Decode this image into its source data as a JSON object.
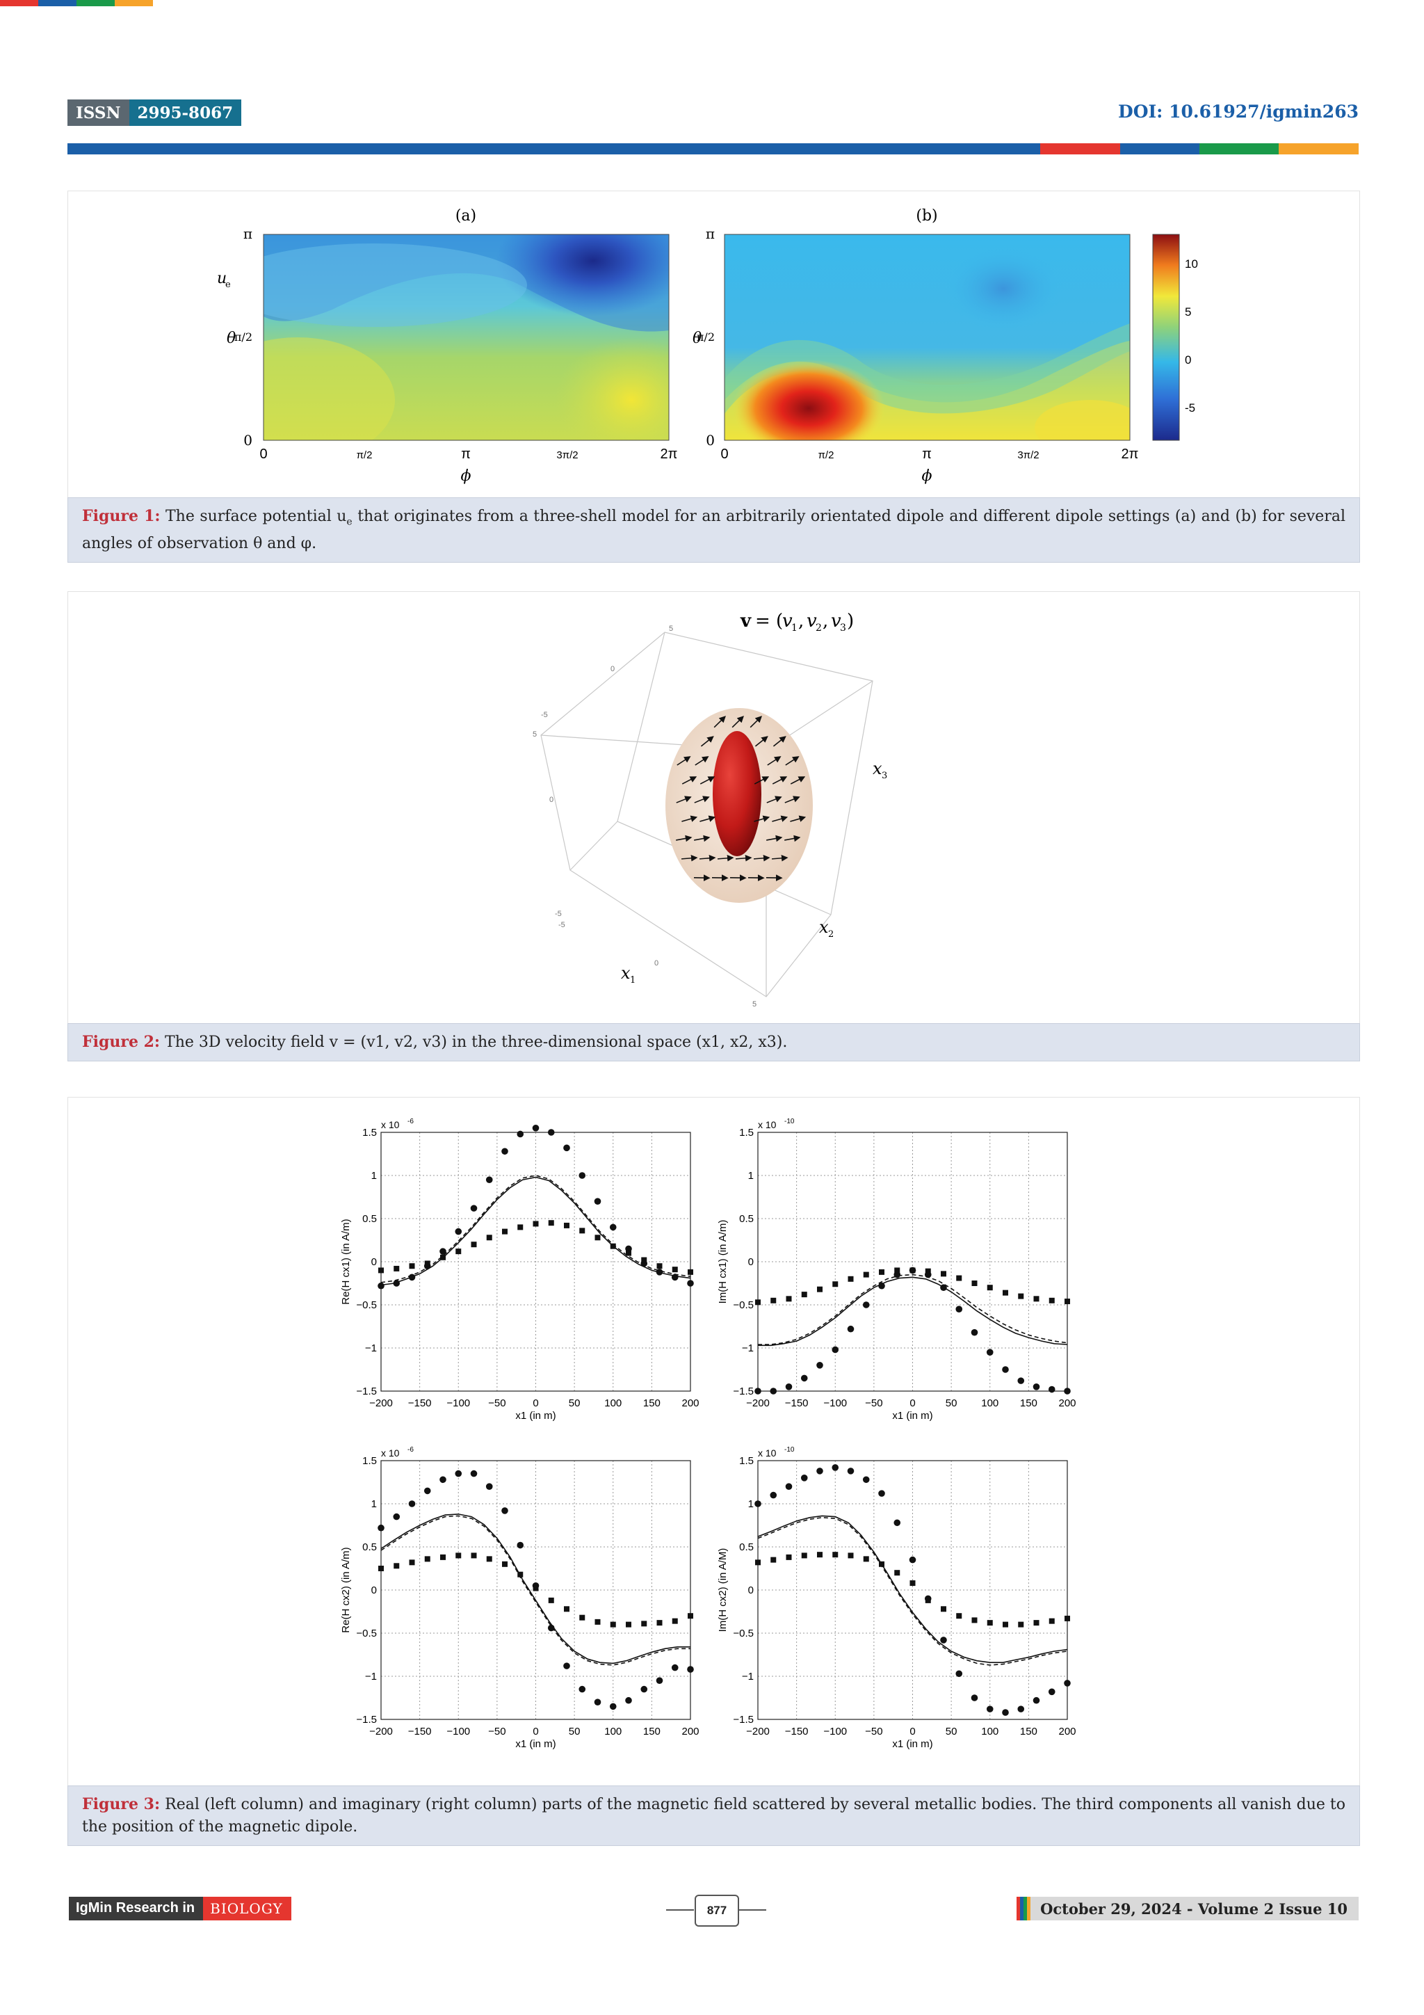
{
  "header": {
    "issn_label": "ISSN",
    "issn_value": "2995-8067",
    "doi": "DOI: 10.61927/igmin263"
  },
  "colors": {
    "top_stripes": [
      "#e5362f",
      "#1b5fa8",
      "#1a9a4a",
      "#f6a32b"
    ],
    "rule_main": "#1b5fa8",
    "rule_accents": [
      "#e5362f",
      "#1b5fa8",
      "#1a9a4a",
      "#f6a32b"
    ],
    "caption_bg": "#dde3ee",
    "caption_label": "#c0303a"
  },
  "figure1": {
    "panel_a_title": "(a)",
    "panel_b_title": "(b)",
    "ylabel": "θ",
    "xlabel": "ϕ",
    "u_label": "u",
    "u_subscript": "e",
    "yticks": [
      "π",
      "π/2",
      "0"
    ],
    "xticks": [
      "0",
      "π/2",
      "π",
      "3π/2",
      "2π"
    ],
    "colorbar_ticks": [
      "10",
      "5",
      "0",
      "-5"
    ],
    "colormap": "jet",
    "caption_label": "Figure 1:",
    "caption_text": "The surface potential u",
    "caption_sub": "e",
    "caption_rest": " that originates from a three-shell model for an arbitrarily orientated dipole and different dipole settings (a) and (b) for several angles of observation θ and φ."
  },
  "figure2": {
    "title": "v = (v",
    "title_parts": [
      "v",
      "1",
      "v",
      "2",
      "v",
      "3"
    ],
    "axis_x1": "x",
    "axis_x1_sub": "1",
    "axis_x2": "x",
    "axis_x2_sub": "2",
    "axis_x3": "x",
    "axis_x3_sub": "3",
    "ticks": [
      "5",
      "0",
      "-5",
      "5",
      "0",
      "-5",
      "-5",
      "0",
      "5"
    ],
    "caption_label": "Figure 2:",
    "caption_text": "The 3D velocity field v = (v1, v2, v3) in the three-dimensional space (x1, x2, x3)."
  },
  "figure3": {
    "caption_label": "Figure 3:",
    "caption_text": "Real (left column) and imaginary (right column) parts of the magnetic field scattered by several metallic bodies. The third components all vanish due to the position of the magnetic dipole.",
    "chart_data": [
      {
        "type": "line",
        "ylabel": "Re(H cx1) (in A/m)",
        "xlabel": "x1 (in m)",
        "scale_label": "x 10",
        "scale_exp": "-6",
        "xlim": [
          -200,
          200
        ],
        "ylim": [
          -1.5,
          1.5
        ],
        "xticks": [
          "−200",
          "−150",
          "−100",
          "−50",
          "0",
          "50",
          "100",
          "150",
          "200"
        ],
        "yticks": [
          "1.5",
          "1",
          "0.5",
          "0",
          "−0.5",
          "−1",
          "−1.5"
        ],
        "grid": true,
        "x": [
          -200,
          -183,
          -167,
          -150,
          -133,
          -117,
          -100,
          -83,
          -67,
          -50,
          -33,
          -17,
          0,
          17,
          33,
          50,
          67,
          83,
          100,
          117,
          133,
          150,
          167,
          183,
          200
        ],
        "series": [
          {
            "style": "solid",
            "values": [
              -0.27,
              -0.25,
              -0.2,
              -0.14,
              -0.05,
              0.07,
              0.22,
              0.38,
              0.55,
              0.72,
              0.86,
              0.95,
              0.98,
              0.94,
              0.83,
              0.68,
              0.5,
              0.33,
              0.18,
              0.06,
              -0.03,
              -0.1,
              -0.14,
              -0.17,
              -0.19
            ]
          },
          {
            "style": "dashed",
            "values": [
              -0.24,
              -0.22,
              -0.18,
              -0.12,
              -0.03,
              0.09,
              0.24,
              0.4,
              0.57,
              0.74,
              0.88,
              0.97,
              1.0,
              0.96,
              0.85,
              0.7,
              0.52,
              0.35,
              0.2,
              0.08,
              -0.01,
              -0.08,
              -0.12,
              -0.15,
              -0.17
            ]
          },
          {
            "style": "circle",
            "x": [
              -200,
              -180,
              -160,
              -140,
              -120,
              -100,
              -80,
              -60,
              -40,
              -20,
              0,
              20,
              40,
              60,
              80,
              100,
              120,
              140,
              160,
              180,
              200
            ],
            "values": [
              -0.28,
              -0.25,
              -0.18,
              -0.05,
              0.12,
              0.35,
              0.62,
              0.95,
              1.28,
              1.48,
              1.55,
              1.5,
              1.32,
              1.0,
              0.7,
              0.4,
              0.15,
              -0.02,
              -0.12,
              -0.18,
              -0.25
            ]
          },
          {
            "style": "square",
            "x": [
              -200,
              -180,
              -160,
              -140,
              -120,
              -100,
              -80,
              -60,
              -40,
              -20,
              0,
              20,
              40,
              60,
              80,
              100,
              120,
              140,
              160,
              180,
              200
            ],
            "values": [
              -0.1,
              -0.08,
              -0.05,
              -0.02,
              0.05,
              0.12,
              0.2,
              0.28,
              0.35,
              0.4,
              0.44,
              0.45,
              0.42,
              0.36,
              0.28,
              0.18,
              0.1,
              0.02,
              -0.05,
              -0.09,
              -0.12
            ]
          }
        ]
      },
      {
        "type": "line",
        "ylabel": "Im(H cx1) (in A/m)",
        "xlabel": "x1 (in m)",
        "scale_label": "x 10",
        "scale_exp": "-10",
        "xlim": [
          -200,
          200
        ],
        "ylim": [
          -1.5,
          1.5
        ],
        "xticks": [
          "−200",
          "−150",
          "−100",
          "−50",
          "0",
          "50",
          "100",
          "150",
          "200"
        ],
        "yticks": [
          "1.5",
          "1",
          "0.5",
          "0",
          "−0.5",
          "−1",
          "−1.5"
        ],
        "grid": true,
        "x": [
          -200,
          -183,
          -167,
          -150,
          -133,
          -117,
          -100,
          -83,
          -67,
          -50,
          -33,
          -17,
          0,
          17,
          33,
          50,
          67,
          83,
          100,
          117,
          133,
          150,
          167,
          183,
          200
        ],
        "series": [
          {
            "style": "solid",
            "values": [
              -0.97,
              -0.97,
              -0.95,
              -0.92,
              -0.85,
              -0.76,
              -0.65,
              -0.52,
              -0.4,
              -0.3,
              -0.23,
              -0.19,
              -0.18,
              -0.2,
              -0.26,
              -0.35,
              -0.46,
              -0.57,
              -0.67,
              -0.76,
              -0.83,
              -0.88,
              -0.92,
              -0.95,
              -0.96
            ]
          },
          {
            "style": "dashed",
            "values": [
              -0.96,
              -0.96,
              -0.94,
              -0.9,
              -0.83,
              -0.74,
              -0.63,
              -0.5,
              -0.38,
              -0.28,
              -0.2,
              -0.16,
              -0.15,
              -0.17,
              -0.22,
              -0.31,
              -0.42,
              -0.53,
              -0.63,
              -0.72,
              -0.79,
              -0.85,
              -0.89,
              -0.92,
              -0.94
            ]
          },
          {
            "style": "circle",
            "x": [
              -200,
              -180,
              -160,
              -140,
              -120,
              -100,
              -80,
              -60,
              -40,
              -20,
              0,
              20,
              40,
              60,
              80,
              100,
              120,
              140,
              160,
              180,
              200
            ],
            "values": [
              -1.5,
              -1.5,
              -1.45,
              -1.35,
              -1.2,
              -1.02,
              -0.78,
              -0.5,
              -0.28,
              -0.15,
              -0.1,
              -0.15,
              -0.3,
              -0.55,
              -0.82,
              -1.05,
              -1.25,
              -1.38,
              -1.45,
              -1.48,
              -1.5
            ]
          },
          {
            "style": "square",
            "x": [
              -200,
              -180,
              -160,
              -140,
              -120,
              -100,
              -80,
              -60,
              -40,
              -20,
              0,
              20,
              40,
              60,
              80,
              100,
              120,
              140,
              160,
              180,
              200
            ],
            "values": [
              -0.47,
              -0.45,
              -0.43,
              -0.38,
              -0.32,
              -0.26,
              -0.2,
              -0.15,
              -0.12,
              -0.1,
              -0.1,
              -0.11,
              -0.14,
              -0.19,
              -0.25,
              -0.3,
              -0.36,
              -0.4,
              -0.43,
              -0.45,
              -0.46
            ]
          }
        ]
      },
      {
        "type": "line",
        "ylabel": "Re(H cx2) (in A/m)",
        "xlabel": "x1 (in m)",
        "scale_label": "x 10",
        "scale_exp": "-6",
        "xlim": [
          -200,
          200
        ],
        "ylim": [
          -1.5,
          1.5
        ],
        "xticks": [
          "−200",
          "−150",
          "−100",
          "−50",
          "0",
          "50",
          "100",
          "150",
          "200"
        ],
        "yticks": [
          "1.5",
          "1",
          "0.5",
          "0",
          "−0.5",
          "−1",
          "−1.5"
        ],
        "grid": true,
        "x": [
          -200,
          -183,
          -167,
          -150,
          -133,
          -117,
          -100,
          -83,
          -67,
          -50,
          -33,
          -17,
          0,
          17,
          33,
          50,
          67,
          83,
          100,
          117,
          133,
          150,
          167,
          183,
          200
        ],
        "series": [
          {
            "style": "solid",
            "values": [
              0.48,
              0.58,
              0.67,
              0.75,
              0.82,
              0.87,
              0.88,
              0.85,
              0.76,
              0.6,
              0.38,
              0.12,
              -0.12,
              -0.36,
              -0.56,
              -0.71,
              -0.8,
              -0.84,
              -0.85,
              -0.82,
              -0.77,
              -0.72,
              -0.68,
              -0.66,
              -0.66
            ]
          },
          {
            "style": "dashed",
            "values": [
              0.46,
              0.56,
              0.65,
              0.73,
              0.8,
              0.85,
              0.86,
              0.83,
              0.74,
              0.58,
              0.36,
              0.1,
              -0.14,
              -0.38,
              -0.58,
              -0.73,
              -0.82,
              -0.86,
              -0.87,
              -0.84,
              -0.79,
              -0.74,
              -0.7,
              -0.68,
              -0.68
            ]
          },
          {
            "style": "circle",
            "x": [
              -200,
              -180,
              -160,
              -140,
              -120,
              -100,
              -80,
              -60,
              -40,
              -20,
              0,
              20,
              40,
              60,
              80,
              100,
              120,
              140,
              160,
              180,
              200
            ],
            "values": [
              0.72,
              0.85,
              1.0,
              1.15,
              1.28,
              1.35,
              1.35,
              1.2,
              0.92,
              0.52,
              0.05,
              -0.44,
              -0.88,
              -1.15,
              -1.3,
              -1.35,
              -1.28,
              -1.15,
              -1.05,
              -0.9,
              -0.92
            ]
          },
          {
            "style": "square",
            "x": [
              -200,
              -180,
              -160,
              -140,
              -120,
              -100,
              -80,
              -60,
              -40,
              -20,
              0,
              20,
              40,
              60,
              80,
              100,
              120,
              140,
              160,
              180,
              200
            ],
            "values": [
              0.25,
              0.28,
              0.32,
              0.36,
              0.38,
              0.4,
              0.4,
              0.36,
              0.3,
              0.18,
              0.02,
              -0.12,
              -0.22,
              -0.32,
              -0.37,
              -0.4,
              -0.4,
              -0.39,
              -0.38,
              -0.36,
              -0.3
            ]
          }
        ]
      },
      {
        "type": "line",
        "ylabel": "Im(H cx2) (in A/M)",
        "xlabel": "x1 (in m)",
        "scale_label": "x 10",
        "scale_exp": "-10",
        "xlim": [
          -200,
          200
        ],
        "ylim": [
          -1.5,
          1.5
        ],
        "xticks": [
          "−200",
          "−150",
          "−100",
          "−50",
          "0",
          "50",
          "100",
          "150",
          "200"
        ],
        "yticks": [
          "1.5",
          "1",
          "0.5",
          "0",
          "−0.5",
          "−1",
          "−1.5"
        ],
        "grid": true,
        "x": [
          -200,
          -183,
          -167,
          -150,
          -133,
          -117,
          -100,
          -83,
          -67,
          -50,
          -33,
          -17,
          0,
          17,
          33,
          50,
          67,
          83,
          100,
          117,
          133,
          150,
          167,
          183,
          200
        ],
        "series": [
          {
            "style": "solid",
            "values": [
              0.62,
              0.68,
              0.74,
              0.8,
              0.84,
              0.86,
              0.85,
              0.78,
              0.64,
              0.44,
              0.2,
              -0.04,
              -0.26,
              -0.45,
              -0.6,
              -0.71,
              -0.78,
              -0.82,
              -0.84,
              -0.84,
              -0.81,
              -0.78,
              -0.74,
              -0.71,
              -0.69
            ]
          },
          {
            "style": "dashed",
            "values": [
              0.6,
              0.66,
              0.72,
              0.78,
              0.82,
              0.84,
              0.83,
              0.76,
              0.62,
              0.42,
              0.18,
              -0.06,
              -0.28,
              -0.47,
              -0.62,
              -0.73,
              -0.8,
              -0.85,
              -0.87,
              -0.86,
              -0.83,
              -0.8,
              -0.76,
              -0.73,
              -0.71
            ]
          },
          {
            "style": "circle",
            "x": [
              -200,
              -180,
              -160,
              -140,
              -120,
              -100,
              -80,
              -60,
              -40,
              -20,
              0,
              20,
              40,
              60,
              80,
              100,
              120,
              140,
              160,
              180,
              200
            ],
            "values": [
              1.0,
              1.1,
              1.2,
              1.3,
              1.38,
              1.42,
              1.38,
              1.28,
              1.12,
              0.78,
              0.35,
              -0.1,
              -0.58,
              -0.97,
              -1.25,
              -1.38,
              -1.42,
              -1.38,
              -1.28,
              -1.18,
              -1.08
            ]
          },
          {
            "style": "square",
            "x": [
              -200,
              -180,
              -160,
              -140,
              -120,
              -100,
              -80,
              -60,
              -40,
              -20,
              0,
              20,
              40,
              60,
              80,
              100,
              120,
              140,
              160,
              180,
              200
            ],
            "values": [
              0.32,
              0.35,
              0.38,
              0.4,
              0.41,
              0.41,
              0.4,
              0.36,
              0.3,
              0.2,
              0.08,
              -0.12,
              -0.22,
              -0.3,
              -0.35,
              -0.38,
              -0.4,
              -0.4,
              -0.38,
              -0.36,
              -0.33
            ]
          }
        ]
      }
    ]
  },
  "footer": {
    "journal_label": "IgMin Research in",
    "journal_subject": "BIOLOGY",
    "page_number": "877",
    "date_issue": "October 29, 2024 - Volume 2 Issue 10"
  }
}
